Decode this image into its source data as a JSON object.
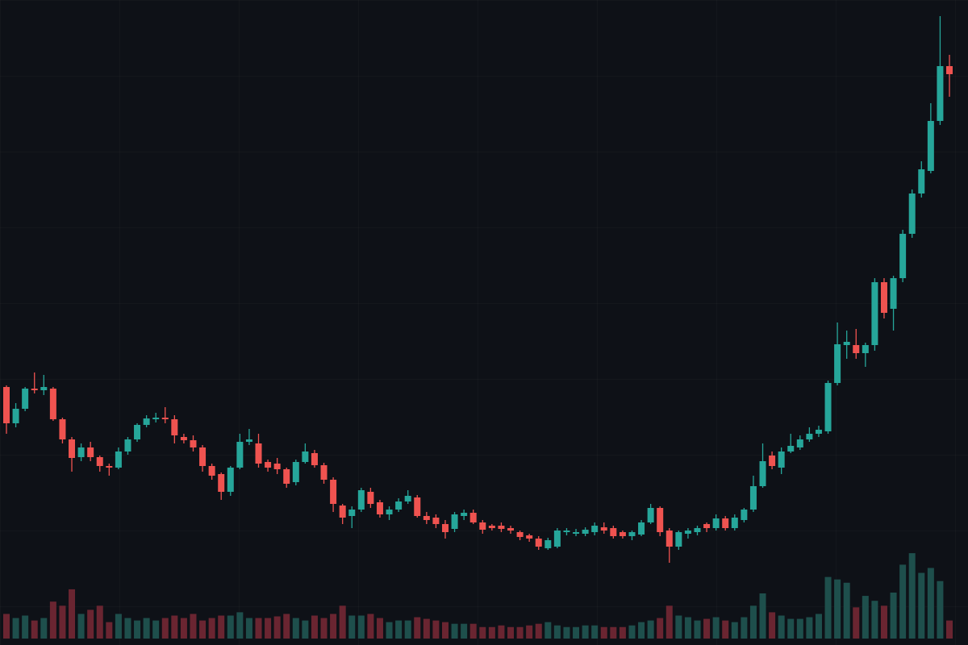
{
  "chart_data": {
    "type": "candlestick",
    "up_color": "#26a69a",
    "down_color": "#ef5350",
    "volume_up_color": "#1e4f4c",
    "volume_down_color": "#6a2531",
    "ylim": [
      0,
      800
    ],
    "volume_ylim": [
      0,
      110
    ],
    "open": [
      320,
      275,
      293,
      318,
      316,
      318,
      280,
      255,
      233,
      245,
      233,
      222,
      220,
      240,
      255,
      273,
      280,
      282,
      280,
      258,
      254,
      245,
      222,
      212,
      190,
      220,
      252,
      250,
      227,
      225,
      218,
      202,
      227,
      238,
      223,
      205,
      173,
      160,
      168,
      190,
      177,
      162,
      168,
      178,
      183,
      160,
      158,
      150,
      144,
      160,
      164,
      152,
      148,
      148,
      145,
      140,
      136,
      132,
      120,
      122,
      140,
      138,
      138,
      140,
      146,
      145,
      140,
      135,
      137,
      152,
      170,
      142,
      122,
      138,
      140,
      150,
      145,
      157,
      145,
      155,
      168,
      197,
      235,
      220,
      240,
      245,
      255,
      262,
      265,
      325,
      372,
      372,
      362,
      372,
      450,
      417,
      455,
      510,
      560,
      588,
      650,
      718
    ],
    "high": [
      322,
      300,
      320,
      338,
      335,
      320,
      282,
      258,
      250,
      252,
      235,
      225,
      245,
      258,
      275,
      285,
      288,
      295,
      285,
      262,
      260,
      248,
      225,
      214,
      222,
      262,
      268,
      262,
      230,
      232,
      220,
      230,
      250,
      242,
      226,
      208,
      175,
      172,
      195,
      195,
      180,
      172,
      182,
      192,
      186,
      165,
      162,
      155,
      165,
      168,
      168,
      155,
      150,
      152,
      148,
      142,
      138,
      135,
      133,
      145,
      145,
      144,
      146,
      152,
      152,
      148,
      142,
      142,
      155,
      175,
      172,
      145,
      142,
      145,
      148,
      152,
      162,
      160,
      162,
      170,
      210,
      250,
      240,
      245,
      262,
      260,
      270,
      272,
      328,
      400,
      390,
      392,
      375,
      455,
      455,
      458,
      515,
      565,
      600,
      672,
      780,
      732
    ],
    "low": [
      262,
      270,
      290,
      312,
      310,
      278,
      250,
      215,
      228,
      228,
      215,
      210,
      218,
      236,
      252,
      270,
      276,
      275,
      250,
      250,
      240,
      215,
      205,
      180,
      185,
      218,
      248,
      220,
      215,
      212,
      195,
      198,
      225,
      220,
      200,
      165,
      150,
      145,
      165,
      170,
      158,
      155,
      165,
      175,
      158,
      150,
      145,
      132,
      140,
      155,
      150,
      138,
      142,
      140,
      138,
      130,
      128,
      118,
      118,
      120,
      136,
      135,
      135,
      136,
      138,
      132,
      132,
      130,
      135,
      150,
      135,
      102,
      118,
      132,
      136,
      140,
      142,
      142,
      142,
      152,
      165,
      195,
      218,
      212,
      238,
      242,
      252,
      258,
      262,
      322,
      355,
      355,
      345,
      365,
      405,
      390,
      450,
      505,
      555,
      585,
      645,
      680
    ],
    "close": [
      275,
      293,
      318,
      316,
      320,
      280,
      255,
      232,
      245,
      233,
      222,
      220,
      240,
      255,
      273,
      281,
      282,
      280,
      260,
      254,
      245,
      222,
      210,
      190,
      220,
      252,
      255,
      225,
      220,
      218,
      200,
      227,
      240,
      223,
      205,
      175,
      158,
      168,
      192,
      175,
      162,
      168,
      178,
      185,
      160,
      155,
      150,
      140,
      162,
      164,
      152,
      143,
      145,
      144,
      142,
      134,
      132,
      122,
      130,
      142,
      142,
      140,
      143,
      148,
      142,
      135,
      135,
      140,
      152,
      170,
      140,
      122,
      140,
      142,
      145,
      145,
      157,
      145,
      158,
      168,
      197,
      228,
      222,
      240,
      247,
      255,
      262,
      267,
      325,
      373,
      376,
      362,
      372,
      450,
      412,
      455,
      510,
      560,
      590,
      650,
      718,
      708
    ],
    "volume": [
      30,
      25,
      28,
      22,
      25,
      45,
      40,
      60,
      30,
      35,
      40,
      20,
      30,
      25,
      22,
      25,
      22,
      25,
      28,
      25,
      30,
      22,
      25,
      28,
      28,
      32,
      25,
      25,
      25,
      27,
      30,
      25,
      22,
      28,
      25,
      30,
      40,
      28,
      28,
      30,
      25,
      20,
      22,
      22,
      26,
      24,
      22,
      20,
      18,
      18,
      18,
      14,
      14,
      16,
      14,
      14,
      16,
      18,
      20,
      16,
      14,
      14,
      16,
      16,
      14,
      14,
      14,
      16,
      20,
      22,
      25,
      40,
      28,
      26,
      22,
      24,
      26,
      22,
      20,
      26,
      40,
      55,
      32,
      28,
      24,
      24,
      26,
      30,
      75,
      72,
      68,
      38,
      52,
      46,
      40,
      56,
      90,
      104,
      80,
      86,
      70,
      22
    ]
  }
}
